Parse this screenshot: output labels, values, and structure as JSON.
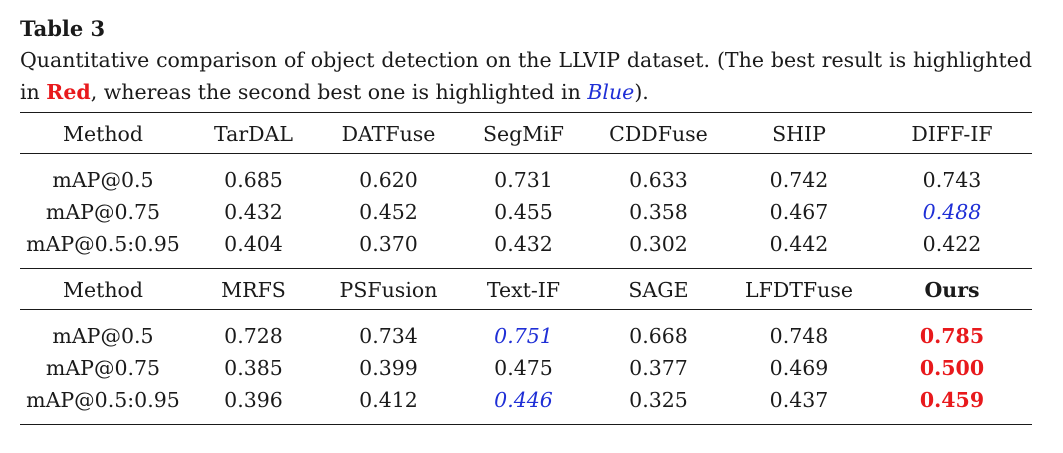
{
  "table_label": "Table 3",
  "caption": {
    "part1": "Quantitative comparison of object detection on the LLVIP dataset. (The best result is highlighted in ",
    "red_word": "Red",
    "part2": ", whereas the second best one is highlighted in ",
    "blue_word": "Blue",
    "part3": ")."
  },
  "colors": {
    "best": "#e8191c",
    "second_best": "#1f2fd6",
    "text": "#1a1a1a"
  },
  "blocks": [
    {
      "header": [
        "Method",
        "TarDAL",
        "DATFuse",
        "SegMiF",
        "CDDFuse",
        "SHIP",
        "DIFF-IF"
      ],
      "rows": [
        {
          "metric": "mAP@0.5",
          "values": [
            "0.685",
            "0.620",
            "0.731",
            "0.633",
            "0.742",
            "0.743"
          ],
          "styles": [
            "",
            "",
            "",
            "",
            "",
            ""
          ]
        },
        {
          "metric": "mAP@0.75",
          "values": [
            "0.432",
            "0.452",
            "0.455",
            "0.358",
            "0.467",
            "0.488"
          ],
          "styles": [
            "",
            "",
            "",
            "",
            "",
            "second"
          ]
        },
        {
          "metric": "mAP@0.5:0.95",
          "values": [
            "0.404",
            "0.370",
            "0.432",
            "0.302",
            "0.442",
            "0.422"
          ],
          "styles": [
            "",
            "",
            "",
            "",
            "",
            ""
          ]
        }
      ]
    },
    {
      "header": [
        "Method",
        "MRFS",
        "PSFusion",
        "Text-IF",
        "SAGE",
        "LFDTFuse",
        "Ours"
      ],
      "rows": [
        {
          "metric": "mAP@0.5",
          "values": [
            "0.728",
            "0.734",
            "0.751",
            "0.668",
            "0.748",
            "0.785"
          ],
          "styles": [
            "",
            "",
            "second",
            "",
            "",
            "best"
          ]
        },
        {
          "metric": "mAP@0.75",
          "values": [
            "0.385",
            "0.399",
            "0.475",
            "0.377",
            "0.469",
            "0.500"
          ],
          "styles": [
            "",
            "",
            "",
            "",
            "",
            "best"
          ]
        },
        {
          "metric": "mAP@0.5:0.95",
          "values": [
            "0.396",
            "0.412",
            "0.446",
            "0.325",
            "0.437",
            "0.459"
          ],
          "styles": [
            "",
            "",
            "second",
            "",
            "",
            "best"
          ]
        }
      ]
    }
  ]
}
